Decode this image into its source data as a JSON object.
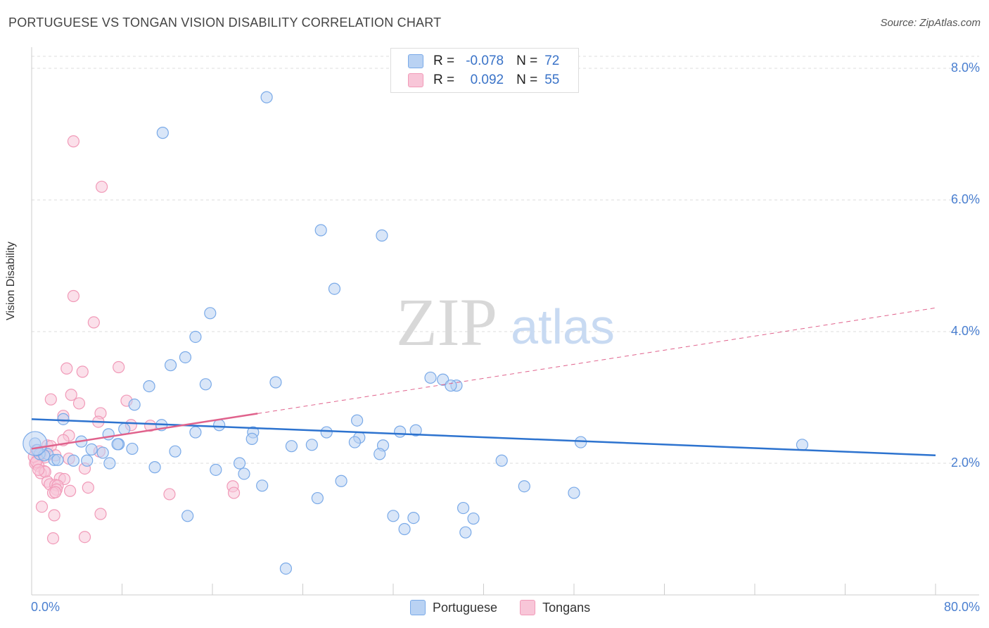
{
  "chart_data": {
    "type": "scatter",
    "title": "PORTUGUESE VS TONGAN VISION DISABILITY CORRELATION CHART",
    "source": "Source: ZipAtlas.com",
    "xlabel": "",
    "ylabel": "Vision Disability",
    "xlim": [
      0,
      80
    ],
    "ylim": [
      0,
      8.5
    ],
    "x_tick_labels": {
      "min": "0.0%",
      "max": "80.0%"
    },
    "y_ticks": [
      {
        "value": 2.0,
        "label": "2.0%"
      },
      {
        "value": 4.0,
        "label": "4.0%"
      },
      {
        "value": 6.0,
        "label": "6.0%"
      },
      {
        "value": 8.0,
        "label": "8.0%"
      }
    ],
    "watermark": {
      "zip": "ZIP",
      "atlas": "atlas"
    },
    "legend": {
      "rows": [
        {
          "r_label": "R =",
          "r_value": "-0.078",
          "n_label": "N =",
          "n_value": "72"
        },
        {
          "r_label": "R =",
          "r_value": "0.092",
          "n_label": "N =",
          "n_value": "55"
        }
      ]
    },
    "series": [
      {
        "name": "Portuguese",
        "color": "#7aaae8",
        "fill": "#b9d2f3",
        "line_color": "#2d73cf",
        "trend": {
          "x0": 0,
          "y0": 2.67,
          "x1": 80,
          "y1": 2.12
        },
        "points": [
          [
            20.8,
            7.56
          ],
          [
            11.6,
            7.02
          ],
          [
            25.6,
            5.54
          ],
          [
            31.0,
            5.46
          ],
          [
            26.8,
            4.65
          ],
          [
            15.8,
            4.28
          ],
          [
            14.5,
            3.92
          ],
          [
            13.6,
            3.61
          ],
          [
            12.3,
            3.49
          ],
          [
            21.6,
            3.23
          ],
          [
            15.4,
            3.2
          ],
          [
            10.4,
            3.17
          ],
          [
            35.3,
            3.3
          ],
          [
            36.4,
            3.27
          ],
          [
            37.6,
            3.18
          ],
          [
            37.1,
            3.18
          ],
          [
            9.1,
            2.89
          ],
          [
            2.8,
            2.67
          ],
          [
            28.8,
            2.65
          ],
          [
            11.5,
            2.58
          ],
          [
            16.6,
            2.58
          ],
          [
            8.2,
            2.52
          ],
          [
            6.8,
            2.44
          ],
          [
            14.5,
            2.47
          ],
          [
            19.6,
            2.47
          ],
          [
            26.1,
            2.47
          ],
          [
            32.6,
            2.48
          ],
          [
            34.0,
            2.5
          ],
          [
            19.5,
            2.37
          ],
          [
            29.0,
            2.39
          ],
          [
            4.4,
            2.33
          ],
          [
            7.7,
            2.29
          ],
          [
            7.6,
            2.29
          ],
          [
            24.8,
            2.28
          ],
          [
            28.6,
            2.32
          ],
          [
            48.6,
            2.32
          ],
          [
            31.1,
            2.27
          ],
          [
            23.0,
            2.26
          ],
          [
            8.9,
            2.22
          ],
          [
            5.3,
            2.21
          ],
          [
            12.7,
            2.18
          ],
          [
            6.3,
            2.16
          ],
          [
            1.4,
            2.14
          ],
          [
            0.7,
            2.14
          ],
          [
            1.1,
            2.12
          ],
          [
            30.8,
            2.14
          ],
          [
            18.4,
            2.0
          ],
          [
            2.0,
            2.05
          ],
          [
            2.3,
            2.05
          ],
          [
            4.9,
            2.04
          ],
          [
            3.7,
            2.04
          ],
          [
            6.9,
            2.0
          ],
          [
            10.9,
            1.94
          ],
          [
            16.3,
            1.9
          ],
          [
            41.6,
            2.04
          ],
          [
            18.8,
            1.84
          ],
          [
            27.4,
            1.73
          ],
          [
            20.4,
            1.66
          ],
          [
            43.6,
            1.65
          ],
          [
            25.3,
            1.47
          ],
          [
            48.0,
            1.55
          ],
          [
            38.2,
            1.32
          ],
          [
            13.8,
            1.2
          ],
          [
            32.0,
            1.2
          ],
          [
            33.8,
            1.17
          ],
          [
            39.1,
            1.16
          ],
          [
            33.0,
            1.0
          ],
          [
            38.4,
            0.95
          ],
          [
            22.5,
            0.4
          ],
          [
            68.2,
            2.28
          ],
          [
            0.3,
            2.3
          ],
          [
            0.5,
            2.2
          ]
        ]
      },
      {
        "name": "Tongans",
        "color": "#f19ab8",
        "fill": "#f8c6d8",
        "line_color": "#e0628c",
        "trend": {
          "x0": 0,
          "y0": 2.22,
          "x1": 80,
          "y1": 4.36,
          "solid_until": 20.0
        },
        "points": [
          [
            3.7,
            6.89
          ],
          [
            6.2,
            6.2
          ],
          [
            3.7,
            4.54
          ],
          [
            5.5,
            4.14
          ],
          [
            3.1,
            3.44
          ],
          [
            4.5,
            3.39
          ],
          [
            7.7,
            3.46
          ],
          [
            1.7,
            2.97
          ],
          [
            3.5,
            3.04
          ],
          [
            8.4,
            2.95
          ],
          [
            4.2,
            2.91
          ],
          [
            6.1,
            2.76
          ],
          [
            2.8,
            2.72
          ],
          [
            5.9,
            2.63
          ],
          [
            8.8,
            2.58
          ],
          [
            10.5,
            2.57
          ],
          [
            3.3,
            2.42
          ],
          [
            2.8,
            2.35
          ],
          [
            1.4,
            2.27
          ],
          [
            1.7,
            2.26
          ],
          [
            6.0,
            2.18
          ],
          [
            0.8,
            2.13
          ],
          [
            0.4,
            2.2
          ],
          [
            2.1,
            2.12
          ],
          [
            1.2,
            2.09
          ],
          [
            3.3,
            2.07
          ],
          [
            0.5,
            2.05
          ],
          [
            0.3,
            2.0
          ],
          [
            0.6,
            1.96
          ],
          [
            4.7,
            1.92
          ],
          [
            1.1,
            1.88
          ],
          [
            0.8,
            1.85
          ],
          [
            1.2,
            1.87
          ],
          [
            2.5,
            1.77
          ],
          [
            2.9,
            1.76
          ],
          [
            1.4,
            1.72
          ],
          [
            1.6,
            1.68
          ],
          [
            2.1,
            1.67
          ],
          [
            2.3,
            1.66
          ],
          [
            5.0,
            1.63
          ],
          [
            17.8,
            1.65
          ],
          [
            2.2,
            1.6
          ],
          [
            3.4,
            1.58
          ],
          [
            1.9,
            1.55
          ],
          [
            2.1,
            1.56
          ],
          [
            12.2,
            1.53
          ],
          [
            17.9,
            1.55
          ],
          [
            0.9,
            1.34
          ],
          [
            6.1,
            1.23
          ],
          [
            2.0,
            1.21
          ],
          [
            4.7,
            0.88
          ],
          [
            1.9,
            0.86
          ],
          [
            0.2,
            2.1
          ],
          [
            0.4,
            2.02
          ],
          [
            0.6,
            1.9
          ]
        ]
      }
    ]
  }
}
